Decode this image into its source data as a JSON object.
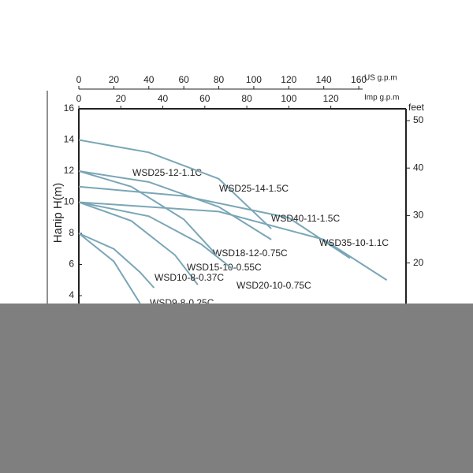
{
  "chart_data": {
    "type": "line",
    "y_label": "Напір H(m)",
    "x_label": "US g.p.m",
    "x2_label": "Imp g.p.m",
    "y2_label": "feet",
    "xlim": [
      0,
      187
    ],
    "xticks": [
      0,
      20,
      40,
      60,
      80,
      100,
      120,
      140,
      160
    ],
    "x2lim": [
      0,
      155.8
    ],
    "x2ticks": [
      0,
      20,
      40,
      60,
      80,
      100,
      120
    ],
    "ylim": [
      0,
      16
    ],
    "yticks": [
      4,
      6,
      8,
      10,
      12,
      14,
      16
    ],
    "y2lim": [
      0,
      52.49
    ],
    "y2ticks": [
      20,
      30,
      40,
      50
    ],
    "color": "#7aa6b6",
    "series": [
      {
        "name": "WSD25-12-1.1C",
        "x": [
          0,
          40,
          80,
          110
        ],
        "values": [
          12,
          11.3,
          9.7,
          7.6
        ]
      },
      {
        "name": "WSD25-14-1.5C",
        "x": [
          0,
          40,
          80,
          110
        ],
        "values": [
          14,
          13.2,
          11.5,
          8.3
        ]
      },
      {
        "name": "WSD40-11-1.5C",
        "x": [
          0,
          60,
          120,
          155
        ],
        "values": [
          11,
          10.4,
          9,
          6.4
        ]
      },
      {
        "name": "WSD35-10-1.1C",
        "x": [
          0,
          80,
          140,
          176
        ],
        "values": [
          10,
          9.4,
          7.6,
          5
        ]
      },
      {
        "name": "WSD18-12-0.75C",
        "x": [
          0,
          30,
          60,
          78
        ],
        "values": [
          12,
          11,
          8.9,
          6.7
        ]
      },
      {
        "name": "WSD15-10-0.55C",
        "x": [
          0,
          30,
          55,
          68
        ],
        "values": [
          10,
          8.8,
          6.6,
          4.7
        ]
      },
      {
        "name": "WSD10-8-0.37C",
        "x": [
          0,
          20,
          35,
          43
        ],
        "values": [
          8,
          7,
          5.5,
          4.5
        ]
      },
      {
        "name": "WSD20-10-0.75C",
        "x": [
          0,
          40,
          70,
          88
        ],
        "values": [
          10,
          9.1,
          7.3,
          5.7
        ]
      },
      {
        "name": "WSD9-8-0.25C",
        "x": [
          0,
          20,
          35
        ],
        "values": [
          8,
          6.2,
          3.5
        ]
      }
    ]
  }
}
